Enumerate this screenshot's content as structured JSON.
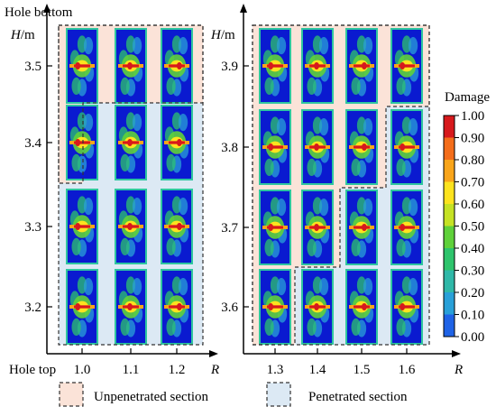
{
  "labels": {
    "hole_bottom": "Hole bottom",
    "hole_top": "Hole top",
    "h_axis": "H",
    "h_unit": "/m",
    "r_axis": "R",
    "colorbar_title": "Damage"
  },
  "left_panel": {
    "r_values": [
      "1.0",
      "1.1",
      "1.2"
    ],
    "h_values": [
      "3.5",
      "3.4",
      "3.3",
      "3.2"
    ]
  },
  "right_panel": {
    "r_values": [
      "1.3",
      "1.4",
      "1.5",
      "1.6"
    ],
    "h_values": [
      "3.9",
      "3.8",
      "3.7",
      "3.6"
    ]
  },
  "colorbar": {
    "ticks": [
      "1.00",
      "0.90",
      "0.80",
      "0.70",
      "0.60",
      "0.50",
      "0.40",
      "0.30",
      "0.20",
      "0.10",
      "0.00"
    ],
    "colors": [
      "#d7191c",
      "#f46d1a",
      "#f9a51a",
      "#fde31e",
      "#c5e224",
      "#5fd13a",
      "#2ec46c",
      "#2fb8a8",
      "#29a0d8",
      "#1f63e6",
      "#0a1ad0"
    ]
  },
  "legend": {
    "unpenetrated": "Unpenetrated section",
    "penetrated": "Penetrated section",
    "unpenetrated_color": "#fbe3d8",
    "penetrated_color": "#dce9f4"
  }
}
